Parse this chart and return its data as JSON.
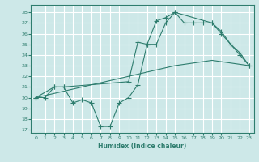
{
  "xlabel": "Humidex (Indice chaleur)",
  "bg_color": "#cde8e8",
  "grid_color": "#ffffff",
  "line_color": "#2e7d6e",
  "xlim": [
    -0.5,
    23.5
  ],
  "ylim": [
    16.7,
    28.7
  ],
  "yticks": [
    17,
    18,
    19,
    20,
    21,
    22,
    23,
    24,
    25,
    26,
    27,
    28
  ],
  "xticks": [
    0,
    1,
    2,
    3,
    4,
    5,
    6,
    7,
    8,
    9,
    10,
    11,
    12,
    13,
    14,
    15,
    16,
    17,
    18,
    19,
    20,
    21,
    22,
    23
  ],
  "line1_x": [
    0,
    1,
    2,
    3,
    4,
    5,
    6,
    7,
    8,
    9,
    10,
    11,
    12,
    13,
    14,
    15,
    16,
    17,
    18,
    19,
    20,
    21,
    22,
    23
  ],
  "line1_y": [
    20.0,
    20.0,
    21.0,
    21.0,
    19.5,
    19.8,
    19.5,
    17.3,
    17.3,
    19.5,
    20.0,
    21.2,
    25.0,
    25.0,
    27.0,
    28.0,
    27.0,
    27.0,
    27.0,
    27.0,
    26.0,
    25.0,
    24.0,
    23.0
  ],
  "line2_x": [
    0,
    2,
    3,
    10,
    11,
    12,
    13,
    14,
    15,
    19,
    20,
    21,
    22,
    23
  ],
  "line2_y": [
    20.0,
    21.0,
    21.0,
    21.5,
    25.2,
    25.0,
    27.2,
    27.5,
    28.0,
    27.0,
    26.2,
    25.0,
    24.2,
    23.0
  ],
  "line3_x": [
    0,
    10,
    15,
    19,
    23
  ],
  "line3_y": [
    20.0,
    22.0,
    23.0,
    23.5,
    23.0
  ]
}
